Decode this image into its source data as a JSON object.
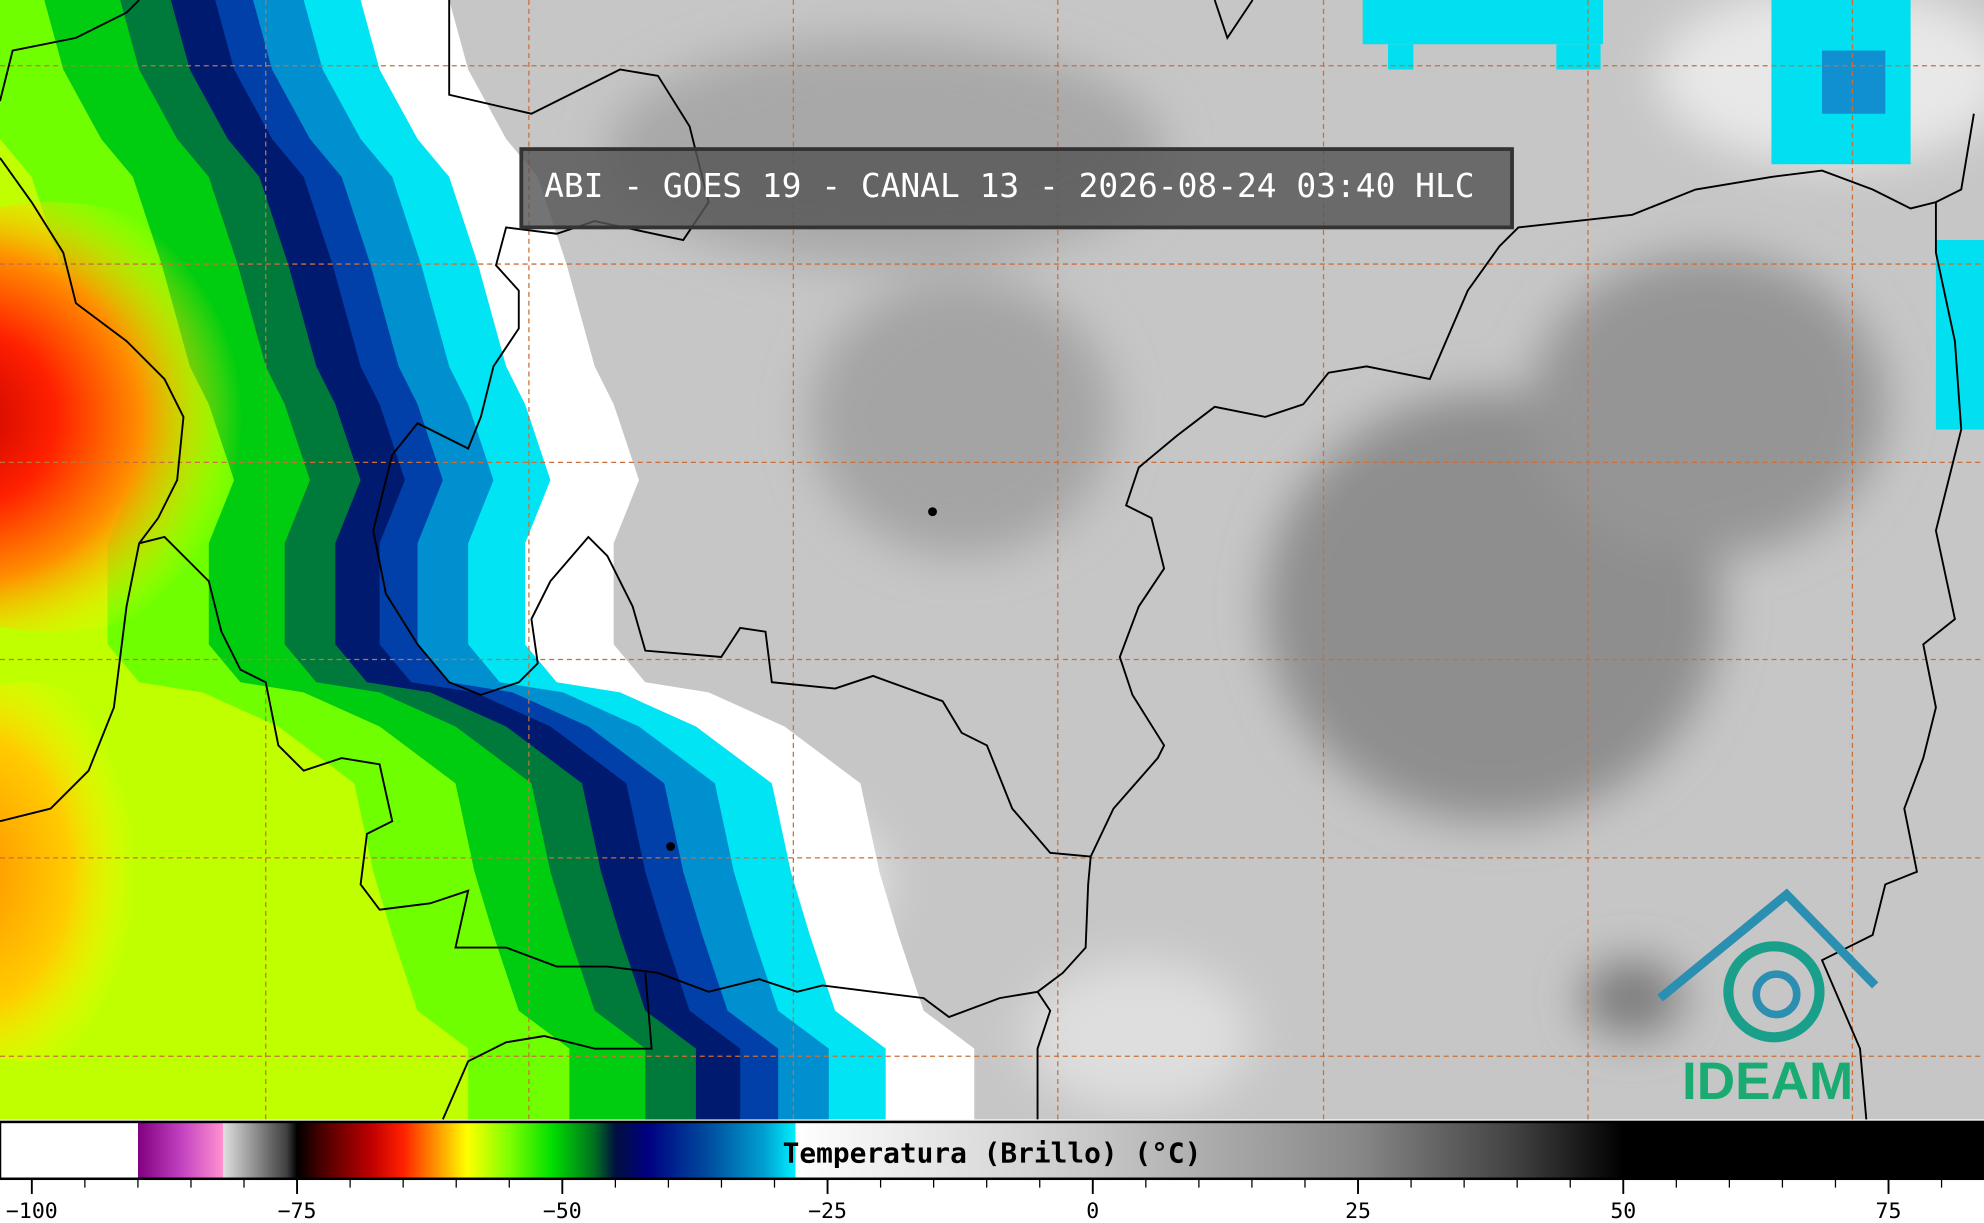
{
  "title": "ABI - GOES 19 - CANAL 13 - 2026-08-24 03:40 HLC",
  "logo": "IDEAM",
  "colorbar": {
    "label": "Temperatura (Brillo) (°C)",
    "range": [
      -103,
      84
    ],
    "ticks": [
      {
        "value": -100,
        "label": "−100"
      },
      {
        "value": -75,
        "label": "−75"
      },
      {
        "value": -50,
        "label": "−50"
      },
      {
        "value": -25,
        "label": "−25"
      },
      0,
      25,
      50,
      75
    ],
    "minor_step": 5,
    "colormap": [
      [
        -103,
        "#ffffff"
      ],
      [
        -90,
        "#ffffff"
      ],
      [
        -90,
        "#800080"
      ],
      [
        -86,
        "#c040c0"
      ],
      [
        -82,
        "#ff90d0"
      ],
      [
        -82,
        "#e0e0e0"
      ],
      [
        -76,
        "#404040"
      ],
      [
        -75,
        "#000000"
      ],
      [
        -73,
        "#400000"
      ],
      [
        -68,
        "#c00000"
      ],
      [
        -65,
        "#ff2000"
      ],
      [
        -62,
        "#ff9000"
      ],
      [
        -59,
        "#ffff00"
      ],
      [
        -55,
        "#80ff00"
      ],
      [
        -51,
        "#00e000"
      ],
      [
        -47,
        "#007020"
      ],
      [
        -45,
        "#001040"
      ],
      [
        -42,
        "#000080"
      ],
      [
        -36,
        "#0050a0"
      ],
      [
        -31,
        "#00a0d0"
      ],
      [
        -28,
        "#00f0ff"
      ],
      [
        -28,
        "#ffffff"
      ],
      [
        0,
        "#c8c8c8"
      ],
      [
        25,
        "#888888"
      ],
      [
        40,
        "#404040"
      ],
      [
        50,
        "#000000"
      ],
      [
        84,
        "#000000"
      ]
    ]
  }
}
